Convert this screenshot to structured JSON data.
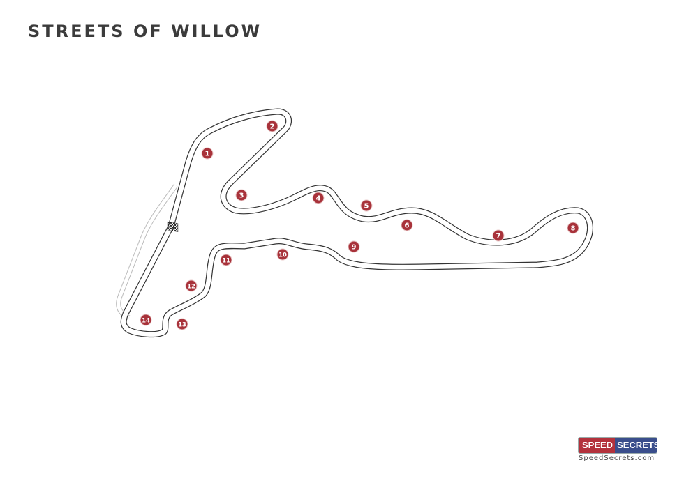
{
  "title": "STREETS OF WILLOW",
  "track": {
    "turns": [
      "1",
      "2",
      "3",
      "4",
      "5",
      "6",
      "7",
      "8",
      "9",
      "10",
      "11",
      "12",
      "13",
      "14"
    ],
    "turn_marker_color": "#a8323a",
    "start_finish_icon": "checkered-flag-icon"
  },
  "logo": {
    "part1": "SPEED",
    "part2": "SECRETS",
    "part1_color": "#b3323c",
    "part2_color": "#3a4e8c",
    "website": "SpeedSecrets.com"
  }
}
